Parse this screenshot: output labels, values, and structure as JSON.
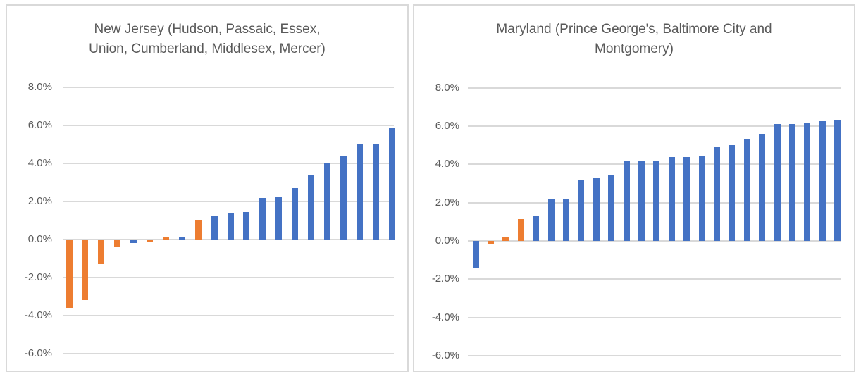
{
  "figure": {
    "background": "#ffffff",
    "panel_border_color": "#d9d9d9"
  },
  "colors": {
    "bar_primary": "#4472c4",
    "bar_highlight": "#ed7d31",
    "gridline": "#d9d9d9",
    "text": "#595959"
  },
  "chart_data": [
    {
      "type": "bar",
      "title": "New Jersey (Hudson, Passaic, Essex, Union, Cumberland, Middlesex, Mercer)",
      "title_lines": [
        "New Jersey (Hudson, Passaic, Essex,",
        "Union, Cumberland, Middlesex, Mercer)"
      ],
      "xlabel": "",
      "ylabel": "",
      "unit": "%",
      "categories_labeled": false,
      "values": [
        -3.6,
        -3.2,
        -1.3,
        -0.4,
        -0.2,
        -0.15,
        0.1,
        0.15,
        1.0,
        1.25,
        1.4,
        1.45,
        2.2,
        2.25,
        2.7,
        3.4,
        4.0,
        4.4,
        5.0,
        5.05,
        5.85
      ],
      "highlight_indexes": [
        0,
        1,
        2,
        3,
        5,
        6,
        8
      ],
      "yticks": [
        8,
        6,
        4,
        2,
        0,
        -2,
        -4,
        -6
      ],
      "ytick_labels": [
        "8.0%",
        "6.0%",
        "4.0%",
        "2.0%",
        "0.0%",
        "-2.0%",
        "-4.0%",
        "-6.0%"
      ],
      "ylim": [
        -7.2,
        8.6
      ],
      "grid": true,
      "legend": false
    },
    {
      "type": "bar",
      "title": "Maryland (Prince George's, Baltimore City and Montgomery)",
      "title_lines": [
        "Maryland (Prince George's, Baltimore City and",
        "Montgomery)"
      ],
      "xlabel": "",
      "ylabel": "",
      "unit": "%",
      "categories_labeled": false,
      "values": [
        -1.45,
        -0.2,
        0.2,
        1.15,
        1.3,
        2.2,
        2.2,
        3.15,
        3.3,
        3.45,
        4.15,
        4.15,
        4.2,
        4.4,
        4.4,
        4.45,
        4.9,
        5.0,
        5.3,
        5.6,
        6.1,
        6.1,
        6.2,
        6.25,
        6.35
      ],
      "highlight_indexes": [
        1,
        2,
        3
      ],
      "yticks": [
        8,
        6,
        4,
        2,
        0,
        -2,
        -4,
        -6
      ],
      "ytick_labels": [
        "8.0%",
        "6.0%",
        "4.0%",
        "2.0%",
        "0.0%",
        "-2.0%",
        "-4.0%",
        "-6.0%"
      ],
      "ylim": [
        -7.2,
        8.6
      ],
      "grid": true,
      "legend": false
    }
  ]
}
